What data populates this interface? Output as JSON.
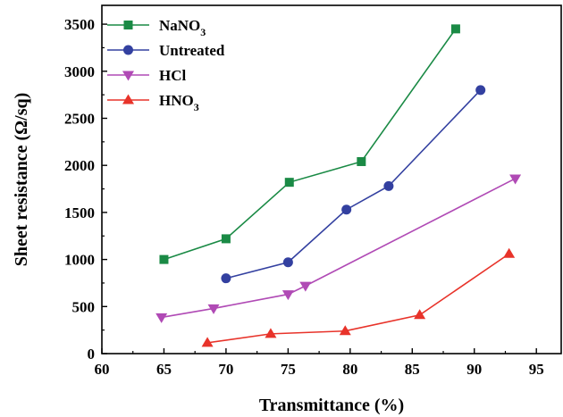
{
  "chart_data": {
    "type": "line",
    "title": "",
    "xlabel": "Transmittance (%)",
    "ylabel": "Sheet resistance (Ω/sq)",
    "xlim": [
      60,
      97
    ],
    "ylim": [
      0,
      3700
    ],
    "xticks": [
      60,
      65,
      70,
      75,
      80,
      85,
      90,
      95
    ],
    "yticks": [
      0,
      500,
      1000,
      1500,
      2000,
      2500,
      3000,
      3500
    ],
    "legend_position": "top-left",
    "grid": false,
    "series": [
      {
        "name": "NaNO3",
        "label_main": "NaNO",
        "label_sub": "3",
        "color": "#1a8a45",
        "marker": "square",
        "points": [
          [
            65.0,
            1000
          ],
          [
            70.0,
            1220
          ],
          [
            75.1,
            1820
          ],
          [
            80.9,
            2040
          ],
          [
            88.5,
            3450
          ]
        ]
      },
      {
        "name": "Untreated",
        "label_main": "Untreated",
        "label_sub": "",
        "color": "#3340a0",
        "marker": "circle",
        "points": [
          [
            70.0,
            800
          ],
          [
            75.0,
            970
          ],
          [
            79.7,
            1530
          ],
          [
            83.1,
            1780
          ],
          [
            90.5,
            2800
          ]
        ]
      },
      {
        "name": "HCl",
        "label_main": "HCl",
        "label_sub": "",
        "color": "#b04ab5",
        "marker": "triangle-down",
        "points": [
          [
            64.8,
            385
          ],
          [
            69.0,
            480
          ],
          [
            75.0,
            630
          ],
          [
            76.4,
            720
          ],
          [
            93.3,
            1860
          ]
        ]
      },
      {
        "name": "HNO3",
        "label_main": "HNO",
        "label_sub": "3",
        "color": "#e8332a",
        "marker": "triangle-up",
        "points": [
          [
            68.5,
            115
          ],
          [
            73.6,
            210
          ],
          [
            79.6,
            240
          ],
          [
            85.6,
            410
          ],
          [
            92.8,
            1060
          ]
        ]
      }
    ]
  }
}
